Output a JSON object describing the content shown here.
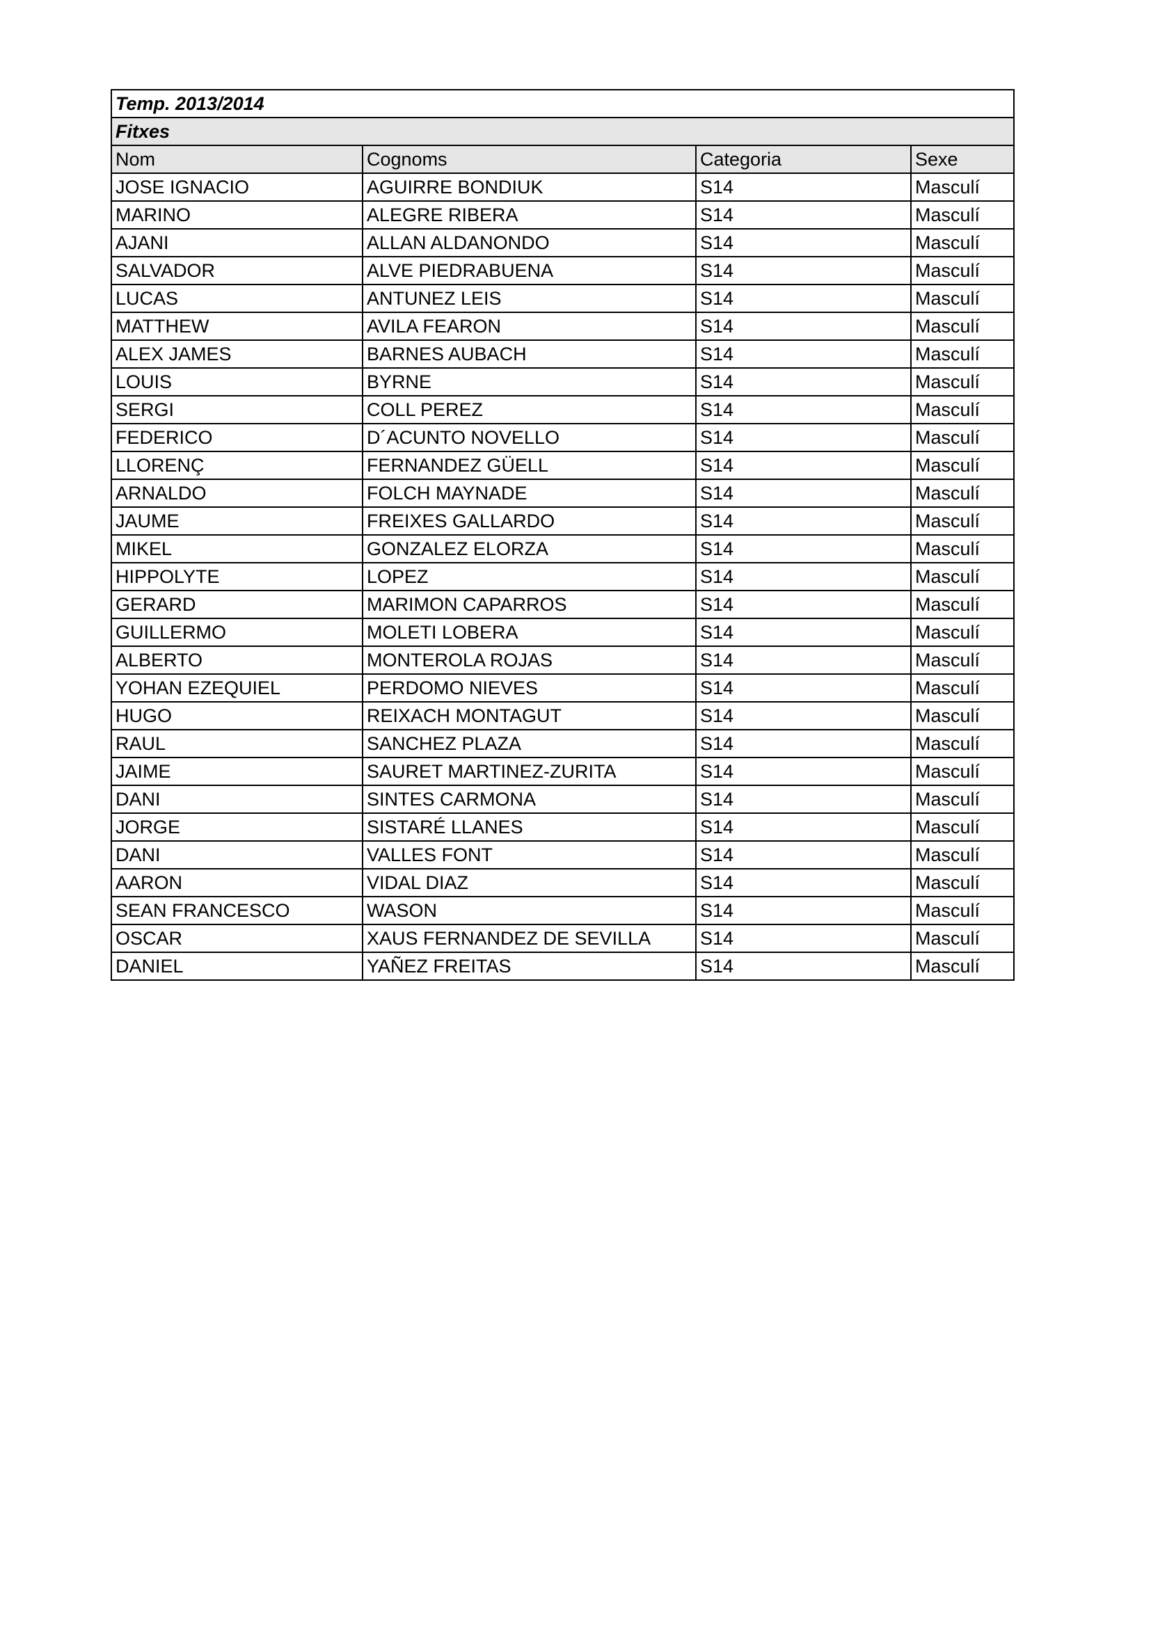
{
  "title": "Temp. 2013/2014",
  "subtitle": "Fitxes",
  "columns": [
    "Nom",
    "Cognoms",
    "Categoria",
    "Sexe"
  ],
  "rows": [
    [
      "JOSE IGNACIO",
      "AGUIRRE BONDIUK",
      "S14",
      "Masculí"
    ],
    [
      "MARINO",
      "ALEGRE RIBERA",
      "S14",
      "Masculí"
    ],
    [
      "AJANI",
      "ALLAN ALDANONDO",
      "S14",
      "Masculí"
    ],
    [
      "SALVADOR",
      "ALVE PIEDRABUENA",
      "S14",
      "Masculí"
    ],
    [
      "LUCAS",
      "ANTUNEZ LEIS",
      "S14",
      "Masculí"
    ],
    [
      "MATTHEW",
      "AVILA FEARON",
      "S14",
      "Masculí"
    ],
    [
      "ALEX JAMES",
      "BARNES AUBACH",
      "S14",
      "Masculí"
    ],
    [
      "LOUIS",
      "BYRNE",
      "S14",
      "Masculí"
    ],
    [
      "SERGI",
      "COLL PEREZ",
      "S14",
      "Masculí"
    ],
    [
      "FEDERICO",
      "D´ACUNTO NOVELLO",
      "S14",
      "Masculí"
    ],
    [
      "LLORENÇ",
      "FERNANDEZ GÜELL",
      "S14",
      "Masculí"
    ],
    [
      "ARNALDO",
      "FOLCH MAYNADE",
      "S14",
      "Masculí"
    ],
    [
      "JAUME",
      "FREIXES GALLARDO",
      "S14",
      "Masculí"
    ],
    [
      "MIKEL",
      "GONZALEZ ELORZA",
      "S14",
      "Masculí"
    ],
    [
      "HIPPOLYTE",
      "LOPEZ",
      "S14",
      "Masculí"
    ],
    [
      "GERARD",
      "MARIMON CAPARROS",
      "S14",
      "Masculí"
    ],
    [
      "GUILLERMO",
      "MOLETI LOBERA",
      "S14",
      "Masculí"
    ],
    [
      "ALBERTO",
      "MONTEROLA ROJAS",
      "S14",
      "Masculí"
    ],
    [
      "YOHAN EZEQUIEL",
      "PERDOMO NIEVES",
      "S14",
      "Masculí"
    ],
    [
      "HUGO",
      "REIXACH MONTAGUT",
      "S14",
      "Masculí"
    ],
    [
      "RAUL",
      "SANCHEZ PLAZA",
      "S14",
      "Masculí"
    ],
    [
      "JAIME",
      "SAURET MARTINEZ-ZURITA",
      "S14",
      "Masculí"
    ],
    [
      "DANI",
      "SINTES CARMONA",
      "S14",
      "Masculí"
    ],
    [
      "JORGE",
      "SISTARÉ LLANES",
      "S14",
      "Masculí"
    ],
    [
      "DANI",
      "VALLES FONT",
      "S14",
      "Masculí"
    ],
    [
      "AARON",
      "VIDAL DIAZ",
      "S14",
      "Masculí"
    ],
    [
      "SEAN FRANCESCO",
      "WASON",
      "S14",
      "Masculí"
    ],
    [
      "OSCAR",
      "XAUS FERNANDEZ DE SEVILLA",
      "S14",
      "Masculí"
    ],
    [
      "DANIEL",
      "YAÑEZ FREITAS",
      "S14",
      "Masculí"
    ]
  ]
}
